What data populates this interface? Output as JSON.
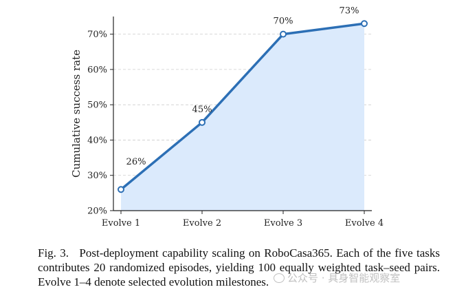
{
  "chart_data": {
    "type": "line",
    "title": "",
    "xlabel": "",
    "ylabel": "Cumulative success rate",
    "categories": [
      "Evolve 1",
      "Evolve 2",
      "Evolve 3",
      "Evolve 4"
    ],
    "values": [
      26,
      45,
      70,
      73
    ],
    "data_labels": [
      "26%",
      "45%",
      "70%",
      "73%"
    ],
    "ylim": [
      20,
      75
    ],
    "yticks": [
      20,
      30,
      40,
      50,
      60,
      70
    ],
    "ytick_labels": [
      "20%",
      "30%",
      "40%",
      "50%",
      "60%",
      "70%"
    ],
    "grid": true,
    "area_fill": true,
    "line_color": "#2c6fb5",
    "fill_color": "#dbeafc"
  },
  "caption": {
    "label": "Fig. 3.",
    "text": "Post-deployment capability scaling on RoboCasa365. Each of the five tasks contributes 20 randomized episodes, yielding 100 equally weighted task–seed pairs. Evolve 1–4 denote selected evolution milestones."
  },
  "watermark": {
    "text": "公众号 · 具身智能观察室"
  }
}
